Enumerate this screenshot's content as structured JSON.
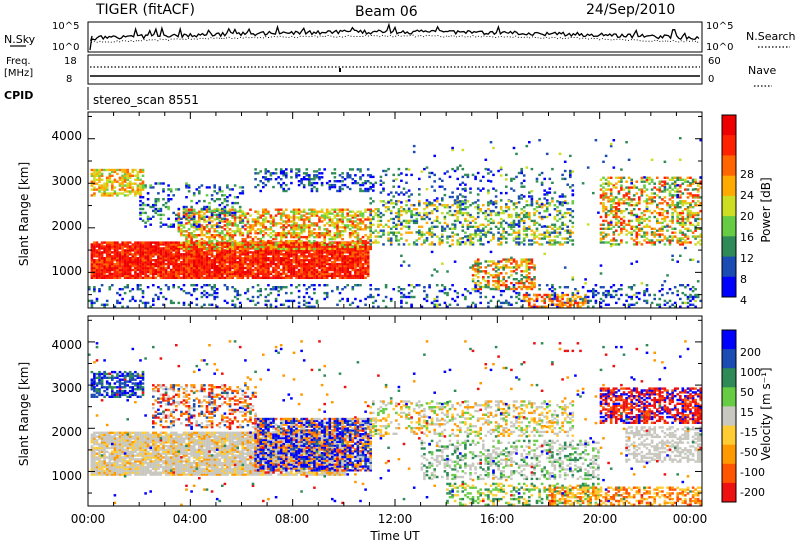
{
  "header": {
    "station": "TIGER (fitACF)",
    "beam": "Beam 06",
    "date": "24/Sep/2010"
  },
  "summary": {
    "nsky_label": "N.Sky",
    "nsky_ticks": [
      "10^5",
      "10^0"
    ],
    "nsearch_label": "N.Search",
    "nsearch_ticks": [
      "10^5",
      "10^0"
    ],
    "freq_label": "Freq.",
    "freq_unit": "[MHz]",
    "freq_ticks": [
      "18",
      "8"
    ],
    "nave_label": "Nave",
    "nave_ticks": [
      "60",
      "0"
    ],
    "cpid_label": "CPID",
    "cpid_value": "stereo_scan 8551"
  },
  "colors": {
    "power_scale": [
      "#0000ff",
      "#1a4cb4",
      "#2e8b57",
      "#66cc44",
      "#ccdd22",
      "#ffaa00",
      "#ff6600",
      "#ff2200",
      "#ee0000"
    ],
    "velocity_scale": [
      "#ee1111",
      "#ff5500",
      "#ff9900",
      "#ffcc33",
      "#c8c8c0",
      "#66cc44",
      "#2e8b57",
      "#1a4cb4",
      "#0000ff"
    ]
  },
  "chart_data": [
    {
      "type": "heatmap",
      "quantity": "power",
      "ylabel": "Slant Range [km]",
      "ylim": [
        200,
        4600
      ],
      "yticks": [
        "4000",
        "3000",
        "2000",
        "1000"
      ],
      "xlim": [
        "00:00",
        "24:00"
      ],
      "colorbar_label": "Power [dB]",
      "colorbar_ticks": [
        "28",
        "24",
        "20",
        "16",
        "12",
        "8",
        "4"
      ],
      "colorbar_range": [
        0,
        32
      ]
    },
    {
      "type": "heatmap",
      "quantity": "velocity",
      "xlabel": "Time UT",
      "xticks": [
        "00:00",
        "04:00",
        "08:00",
        "12:00",
        "16:00",
        "20:00",
        "00:00"
      ],
      "ylabel": "Slant Range [km]",
      "ylim": [
        200,
        4600
      ],
      "yticks": [
        "4000",
        "3000",
        "2000",
        "1000"
      ],
      "colorbar_label": "Velocity [m s⁻¹]",
      "colorbar_ticks": [
        "200",
        "100",
        "50",
        "15",
        "-15",
        "-50",
        "-100",
        "-200"
      ]
    }
  ]
}
